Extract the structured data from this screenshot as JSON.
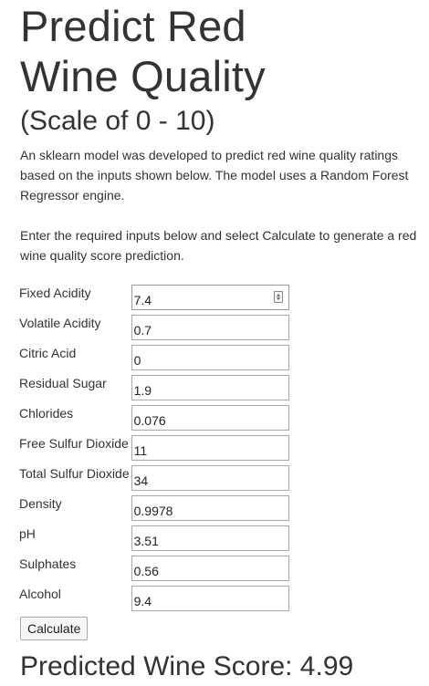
{
  "header": {
    "title_line1": "Predict Red",
    "title_line2": "Wine Quality",
    "subtitle": "(Scale of 0 - 10)"
  },
  "intro": {
    "description": "An sklearn model was developed to predict red wine quality ratings based on the inputs shown below. The model uses a Random Forest Regressor engine.",
    "instructions": "Enter the required inputs below and select Calculate to generate a red wine quality score prediction."
  },
  "form": {
    "fields": [
      {
        "label": "Fixed Acidity",
        "value": "7.4"
      },
      {
        "label": "Volatile Acidity",
        "value": "0.7"
      },
      {
        "label": "Citric Acid",
        "value": "0"
      },
      {
        "label": "Residual Sugar",
        "value": "1.9"
      },
      {
        "label": "Chlorides",
        "value": "0.076"
      },
      {
        "label": "Free Sulfur Dioxide",
        "value": "11"
      },
      {
        "label": "Total Sulfur Dioxide",
        "value": "34"
      },
      {
        "label": "Density",
        "value": "0.9978"
      },
      {
        "label": "pH",
        "value": "3.51"
      },
      {
        "label": "Sulphates",
        "value": "0.56"
      },
      {
        "label": "Alcohol",
        "value": "9.4"
      }
    ],
    "calculate_label": "Calculate"
  },
  "result": {
    "prefix": "Predicted Wine Score: ",
    "score": "4.99"
  }
}
